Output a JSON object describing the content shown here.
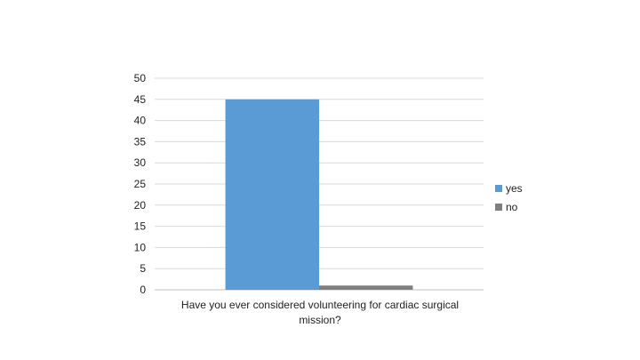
{
  "chart_data": {
    "type": "bar",
    "categories": [
      "Have you ever considered volunteering for cardiac surgical mission?"
    ],
    "series": [
      {
        "name": "yes",
        "values": [
          45
        ],
        "color": "#5b9bd5"
      },
      {
        "name": "no",
        "values": [
          1
        ],
        "color": "#7f7f7f"
      }
    ],
    "ylim": [
      0,
      50
    ],
    "yticks": [
      "0",
      "5",
      "10",
      "15",
      "20",
      "25",
      "30",
      "35",
      "40",
      "45",
      "50"
    ],
    "grid": true,
    "legend_position": "right"
  }
}
